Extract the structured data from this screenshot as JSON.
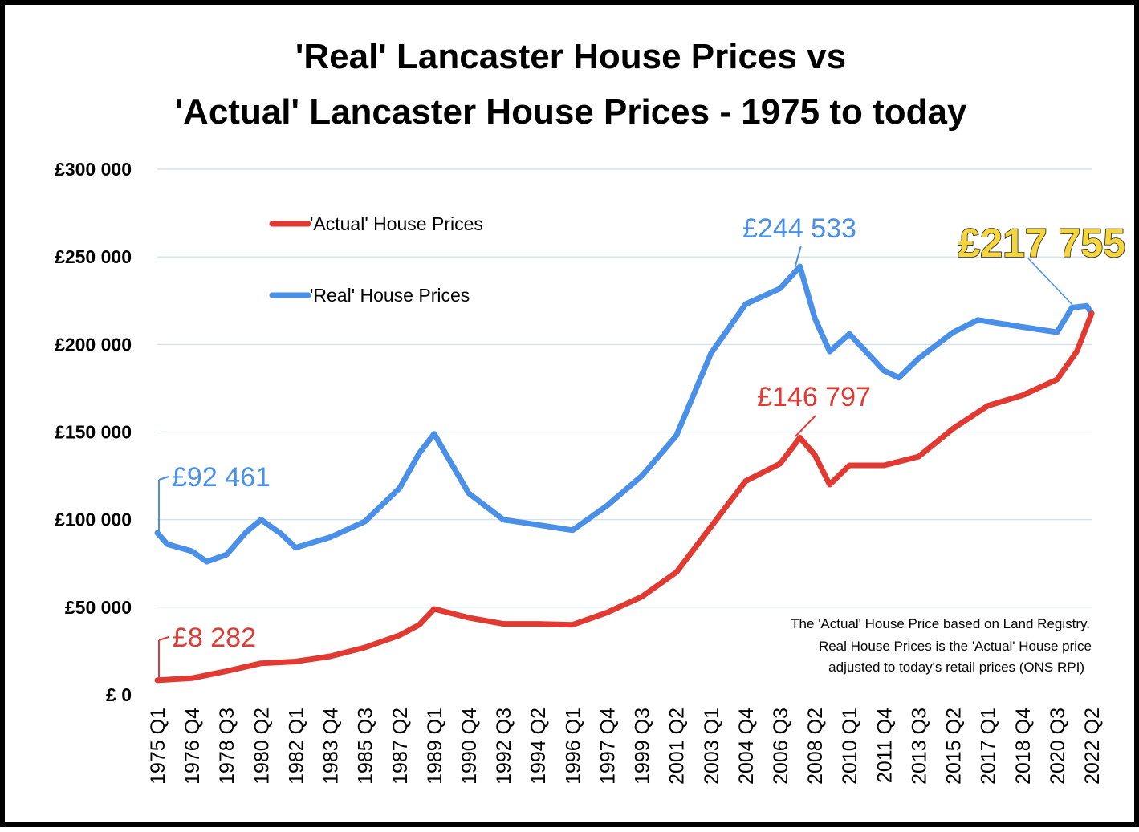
{
  "chart_data": {
    "type": "line",
    "title_line1": "'Real' Lancaster House Prices vs",
    "title_line2": "'Actual' Lancaster House Prices - 1975 to today",
    "xlabel": "",
    "ylabel": "",
    "ylim": [
      0,
      300000
    ],
    "yticks": [
      0,
      50000,
      100000,
      150000,
      200000,
      250000,
      300000
    ],
    "ytick_labels": [
      "£ 0",
      "£50 000",
      "£100 000",
      "£150 000",
      "£200 000",
      "£250 000",
      "£300 000"
    ],
    "grid": "horizontal",
    "legend_position": "top-left",
    "x_quarters_count": 190,
    "x_tick_labels": [
      "1975 Q1",
      "1976 Q4",
      "1978 Q3",
      "1980 Q2",
      "1982 Q1",
      "1983 Q4",
      "1985 Q3",
      "1987 Q2",
      "1989 Q1",
      "1990 Q4",
      "1992 Q3",
      "1994 Q2",
      "1996 Q1",
      "1997 Q4",
      "1999 Q3",
      "2001 Q2",
      "2003 Q1",
      "2004 Q4",
      "2006 Q3",
      "2008 Q2",
      "2010 Q1",
      "2011 Q4",
      "2013 Q3",
      "2015 Q2",
      "2017 Q1",
      "2018 Q4",
      "2020 Q3",
      "2022 Q2"
    ],
    "series": [
      {
        "name": "'Actual' House Prices",
        "color": "#E03A33",
        "points": [
          [
            "1975 Q1",
            8282
          ],
          [
            "1976 Q4",
            9500
          ],
          [
            "1978 Q3",
            13500
          ],
          [
            "1980 Q2",
            18000
          ],
          [
            "1982 Q1",
            19000
          ],
          [
            "1983 Q4",
            22000
          ],
          [
            "1985 Q3",
            27000
          ],
          [
            "1987 Q2",
            34000
          ],
          [
            "1988 Q2",
            40000
          ],
          [
            "1989 Q1",
            49000
          ],
          [
            "1990 Q4",
            44000
          ],
          [
            "1992 Q3",
            40500
          ],
          [
            "1994 Q2",
            40500
          ],
          [
            "1996 Q1",
            40000
          ],
          [
            "1997 Q4",
            47000
          ],
          [
            "1999 Q3",
            56000
          ],
          [
            "2001 Q2",
            70000
          ],
          [
            "2003 Q1",
            96000
          ],
          [
            "2004 Q4",
            122000
          ],
          [
            "2006 Q3",
            132000
          ],
          [
            "2007 Q3",
            146797
          ],
          [
            "2008 Q2",
            137000
          ],
          [
            "2009 Q1",
            120000
          ],
          [
            "2010 Q1",
            131000
          ],
          [
            "2011 Q4",
            131000
          ],
          [
            "2013 Q3",
            136000
          ],
          [
            "2015 Q2",
            152000
          ],
          [
            "2017 Q1",
            165000
          ],
          [
            "2018 Q4",
            171000
          ],
          [
            "2020 Q3",
            180000
          ],
          [
            "2021 Q3",
            196000
          ],
          [
            "2022 Q2",
            217755
          ]
        ]
      },
      {
        "name": "'Real' House Prices",
        "color": "#4A90E8",
        "points": [
          [
            "1975 Q1",
            92461
          ],
          [
            "1975 Q3",
            86000
          ],
          [
            "1976 Q4",
            82000
          ],
          [
            "1977 Q3",
            76000
          ],
          [
            "1978 Q3",
            80000
          ],
          [
            "1979 Q3",
            93000
          ],
          [
            "1980 Q2",
            100000
          ],
          [
            "1981 Q2",
            92000
          ],
          [
            "1982 Q1",
            84000
          ],
          [
            "1983 Q4",
            90000
          ],
          [
            "1985 Q3",
            99000
          ],
          [
            "1987 Q2",
            118000
          ],
          [
            "1988 Q2",
            138000
          ],
          [
            "1989 Q1",
            149000
          ],
          [
            "1990 Q4",
            115000
          ],
          [
            "1992 Q3",
            100000
          ],
          [
            "1994 Q2",
            97000
          ],
          [
            "1996 Q1",
            94000
          ],
          [
            "1997 Q4",
            108000
          ],
          [
            "1999 Q3",
            125000
          ],
          [
            "2001 Q2",
            148000
          ],
          [
            "2003 Q1",
            195000
          ],
          [
            "2004 Q4",
            223000
          ],
          [
            "2006 Q3",
            232000
          ],
          [
            "2007 Q3",
            244533
          ],
          [
            "2008 Q2",
            215000
          ],
          [
            "2009 Q1",
            196000
          ],
          [
            "2010 Q1",
            206000
          ],
          [
            "2011 Q4",
            185000
          ],
          [
            "2012 Q3",
            181000
          ],
          [
            "2013 Q3",
            192000
          ],
          [
            "2015 Q2",
            207000
          ],
          [
            "2016 Q3",
            214000
          ],
          [
            "2018 Q4",
            210000
          ],
          [
            "2020 Q3",
            207000
          ],
          [
            "2021 Q2",
            221000
          ],
          [
            "2022 Q1",
            222000
          ],
          [
            "2022 Q2",
            217755
          ]
        ]
      }
    ],
    "annotations": {
      "actual_start": "£8 282",
      "real_start": "£92 461",
      "actual_peak": "£146 797",
      "real_peak": "£244 533",
      "latest": "£217 755"
    },
    "note_lines": [
      "The 'Actual' House Price based on Land Registry.",
      "Real House Prices is the 'Actual' House price",
      "adjusted  to today's retail prices (ONS RPI)"
    ]
  }
}
